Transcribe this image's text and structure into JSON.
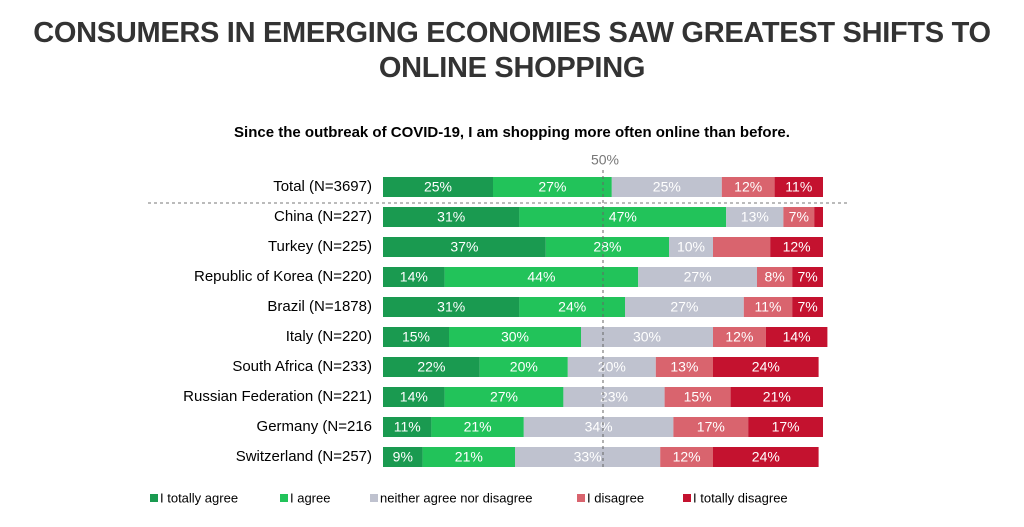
{
  "chart_data": {
    "type": "stacked-bar-horizontal",
    "title": "CONSUMERS IN EMERGING ECONOMIES SAW GREATEST SHIFTS TO ONLINE SHOPPING",
    "subtitle": "Since the outbreak of COVID-19, I am shopping more often online than before.",
    "reference_line": {
      "value": 50,
      "label": "50%"
    },
    "xlim": [
      0,
      100
    ],
    "categories": [
      "Total (N=3697)",
      "China (N=227)",
      "Turkey (N=225)",
      "Republic of Korea (N=220)",
      "Brazil (N=1878)",
      "Italy (N=220)",
      "South Africa (N=233)",
      "Russian Federation (N=221)",
      "Germany (N=216",
      "Switzerland (N=257)"
    ],
    "series": [
      {
        "name": "I totally agree",
        "color": "#1a9a50",
        "values": [
          25,
          31,
          37,
          14,
          31,
          15,
          22,
          14,
          11,
          9
        ],
        "value_labels": [
          "25%",
          "31%",
          "37%",
          "14%",
          "31%",
          "15%",
          "22%",
          "14%",
          "11%",
          "9%"
        ]
      },
      {
        "name": "I agree",
        "color": "#22c35a",
        "values": [
          27,
          47,
          28,
          44,
          24,
          30,
          20,
          27,
          21,
          21
        ],
        "value_labels": [
          "27%",
          "47%",
          "28%",
          "44%",
          "24%",
          "30%",
          "20%",
          "27%",
          "21%",
          "21%"
        ]
      },
      {
        "name": "neither agree nor disagree",
        "color": "#bfc2cf",
        "values": [
          25,
          13,
          10,
          27,
          27,
          30,
          20,
          23,
          34,
          33
        ],
        "value_labels": [
          "25%",
          "13%",
          "10%",
          "27%",
          "27%",
          "30%",
          "20%",
          "23%",
          "34%",
          "33%"
        ]
      },
      {
        "name": "I disagree",
        "color": "#d9646e",
        "values": [
          12,
          7,
          13,
          8,
          11,
          12,
          13,
          15,
          17,
          12
        ],
        "value_labels": [
          "12%",
          "7%",
          null,
          "8%",
          "11%",
          "12%",
          "13%",
          "15%",
          "17%",
          "12%"
        ]
      },
      {
        "name": "I totally disagree",
        "color": "#c4122f",
        "values": [
          11,
          2,
          12,
          7,
          7,
          14,
          24,
          21,
          17,
          24
        ],
        "value_labels": [
          "11%",
          null,
          "12%",
          "7%",
          "7%",
          "14%",
          "24%",
          "21%",
          "17%",
          "24%"
        ]
      }
    ]
  }
}
